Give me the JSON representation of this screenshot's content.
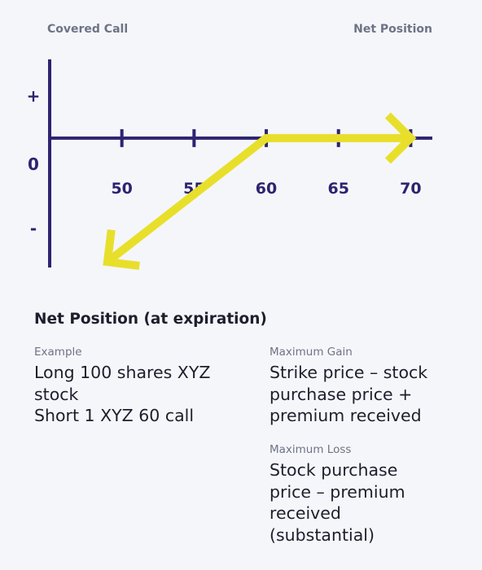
{
  "header": {
    "left": "Covered Call",
    "right": "Net Position"
  },
  "chart_data": {
    "type": "line",
    "title": "",
    "xlabel": "",
    "ylabel": "",
    "x_ticks": [
      50,
      55,
      60,
      65,
      70
    ],
    "y_tick_labels": [
      "+",
      "0",
      "-"
    ],
    "series": [
      {
        "x": [
          49,
          60,
          70
        ],
        "y": [
          -11,
          0,
          0
        ],
        "arrows": [
          "start",
          "end"
        ]
      }
    ],
    "xlim": [
      45,
      71.5
    ],
    "ylim": [
      -11.5,
      7
    ],
    "colors": {
      "axis": "#2d2370",
      "line": "#e8df2b"
    }
  },
  "section": {
    "title": "Net Position (at expiration)"
  },
  "example": {
    "label": "Example",
    "lines": [
      "Long 100 shares XYZ",
      "stock",
      "Short 1 XYZ 60 call"
    ]
  },
  "max_gain": {
    "label": "Maximum Gain",
    "lines": [
      "Strike price – stock",
      "purchase price +",
      "premium received"
    ]
  },
  "max_loss": {
    "label": "Maximum Loss",
    "lines": [
      "Stock purchase",
      "price – premium",
      "received",
      "(substantial)"
    ]
  }
}
